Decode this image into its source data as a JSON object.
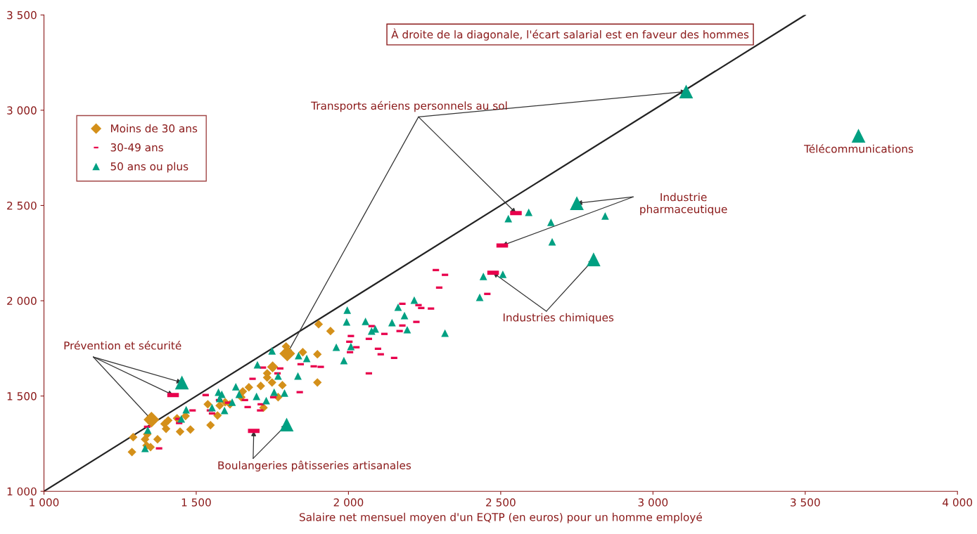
{
  "chart_data": {
    "type": "bubble",
    "xlabel": "Salaire net mensuel moyen d'un EQTP (en euros) pour un homme employé",
    "xlim": [
      1000,
      4000
    ],
    "ylim": [
      1000,
      3500
    ],
    "xticks": [
      {
        "value": 1000,
        "label": "1 000"
      },
      {
        "value": 1500,
        "label": "1 500"
      },
      {
        "value": 2000,
        "label": "2 000"
      },
      {
        "value": 2500,
        "label": "2 500"
      },
      {
        "value": 3000,
        "label": "3 000"
      },
      {
        "value": 3500,
        "label": "3 500"
      },
      {
        "value": 4000,
        "label": "4 000"
      }
    ],
    "yticks": [
      {
        "value": 1000,
        "label": "1 000"
      },
      {
        "value": 1500,
        "label": "1 500"
      },
      {
        "value": 2000,
        "label": "2 000"
      },
      {
        "value": 2500,
        "label": "2 500"
      },
      {
        "value": 3000,
        "label": "3 000"
      },
      {
        "value": 3500,
        "label": "3 500"
      }
    ],
    "grid": false,
    "legend": "top left",
    "series": [
      {
        "name": "Moins de 30 ans",
        "color": "#d4901a",
        "marker": "diamond",
        "x": [
          1799,
          1353,
          1751,
          1795,
          1850,
          1898,
          1898,
          1733,
          1733,
          1712,
          1749,
          1783,
          1673,
          1653,
          1648,
          1769,
          1721,
          1538,
          1577,
          1595,
          1611,
          1570,
          1547,
          1408,
          1396,
          1437,
          1465,
          1401,
          1447,
          1481,
          1339,
          1373,
          1332,
          1337,
          1350,
          1289,
          1293,
          1902,
          1941
        ],
        "values": [
          1723,
          1376,
          1653,
          1760,
          1730,
          1719,
          1571,
          1619,
          1597,
          1553,
          1571,
          1557,
          1546,
          1524,
          1494,
          1494,
          1439,
          1457,
          1450,
          1468,
          1457,
          1398,
          1347,
          1372,
          1354,
          1383,
          1395,
          1328,
          1313,
          1324,
          1299,
          1273,
          1273,
          1240,
          1232,
          1206,
          1284,
          1877,
          1841
        ],
        "sizes": [
          1,
          1,
          0.5,
          0.3,
          0.3,
          0.3,
          0.3,
          0.3,
          0.3,
          0.3,
          0.3,
          0.3,
          0.3,
          0.3,
          0.3,
          0.3,
          0.3,
          0.3,
          0.3,
          0.3,
          0.3,
          0.3,
          0.3,
          0.3,
          0.3,
          0.3,
          0.3,
          0.3,
          0.3,
          0.3,
          0.3,
          0.3,
          0.3,
          0.3,
          0.3,
          0.3,
          0.3,
          0.3,
          0.3
        ]
      },
      {
        "name": "30-49 ans",
        "color": "#e8004c",
        "marker": "square",
        "x": [
          2550,
          2505,
          2475,
          1424,
          1689,
          1719,
          1776,
          1843,
          1886,
          1909,
          1767,
          1685,
          1531,
          1488,
          1575,
          1605,
          1660,
          1669,
          1712,
          1710,
          1753,
          1840,
          1545,
          1552,
          1442,
          1444,
          1339,
          1378,
          2287,
          2317,
          2298,
          2177,
          2230,
          2239,
          2271,
          2223,
          2177,
          2076,
          2168,
          2118,
          2008,
          2067,
          2003,
          2026,
          2005,
          2097,
          2106,
          2150,
          2067,
          2456
        ],
        "values": [
          2460,
          2290,
          2147,
          1505,
          1317,
          1649,
          1645,
          1667,
          1656,
          1653,
          1619,
          1590,
          1505,
          1424,
          1479,
          1465,
          1479,
          1442,
          1457,
          1424,
          1494,
          1520,
          1424,
          1409,
          1380,
          1358,
          1339,
          1225,
          2161,
          2136,
          2069,
          1984,
          1977,
          1962,
          1959,
          1889,
          1870,
          1867,
          1841,
          1826,
          1815,
          1800,
          1785,
          1756,
          1730,
          1748,
          1719,
          1700,
          1619,
          2036
        ],
        "sizes": [
          0.39,
          0.39,
          0.39,
          0.39,
          0.39,
          0.12,
          0.12,
          0.12,
          0.12,
          0.12,
          0.12,
          0.12,
          0.12,
          0.12,
          0.12,
          0.12,
          0.12,
          0.12,
          0.12,
          0.12,
          0.12,
          0.12,
          0.12,
          0.12,
          0.12,
          0.12,
          0.12,
          0.12,
          0.12,
          0.12,
          0.12,
          0.12,
          0.12,
          0.12,
          0.12,
          0.12,
          0.12,
          0.12,
          0.12,
          0.12,
          0.12,
          0.12,
          0.12,
          0.12,
          0.12,
          0.12,
          0.12,
          0.12,
          0.12,
          0.12
        ]
      },
      {
        "name": "50 ans ou plus",
        "color": "#00a082",
        "marker": "triangle",
        "x": [
          3109,
          2750,
          2805,
          1453,
          1797,
          3675,
          1749,
          1701,
          1769,
          1834,
          1836,
          1863,
          1630,
          1573,
          1584,
          1577,
          1641,
          1618,
          1756,
          1790,
          1698,
          1730,
          1593,
          1552,
          1467,
          1451,
          1341,
          1332,
          1996,
          1994,
          2056,
          2088,
          2076,
          2143,
          2163,
          2216,
          2184,
          2193,
          2317,
          1960,
          2008,
          1985,
          2431,
          2525,
          2592,
          2665,
          2669,
          2843,
          2443,
          2507
        ],
        "values": [
          3098,
          2512,
          2217,
          1571,
          1350,
          2866,
          1737,
          1664,
          1605,
          1605,
          1712,
          1697,
          1549,
          1520,
          1509,
          1487,
          1509,
          1468,
          1520,
          1516,
          1498,
          1476,
          1424,
          1439,
          1428,
          1380,
          1321,
          1225,
          1951,
          1889,
          1892,
          1852,
          1841,
          1885,
          1966,
          2003,
          1922,
          1848,
          1830,
          1756,
          1760,
          1686,
          2018,
          2431,
          2464,
          2412,
          2309,
          2445,
          2128,
          2139
        ],
        "sizes": [
          0.77,
          0.77,
          0.77,
          0.77,
          0.77,
          0.77,
          0.23,
          0.23,
          0.23,
          0.23,
          0.23,
          0.23,
          0.23,
          0.23,
          0.23,
          0.23,
          0.23,
          0.23,
          0.23,
          0.23,
          0.23,
          0.23,
          0.23,
          0.23,
          0.23,
          0.23,
          0.23,
          0.23,
          0.23,
          0.23,
          0.23,
          0.23,
          0.23,
          0.23,
          0.23,
          0.23,
          0.23,
          0.23,
          0.23,
          0.23,
          0.23,
          0.23,
          0.23,
          0.23,
          0.23,
          0.23,
          0.23,
          0.23,
          0.23,
          0.23
        ]
      },
      {
        "type": "line",
        "color": "#222222",
        "marker": "none",
        "x": [
          1000,
          3500
        ],
        "values": [
          1000,
          3500
        ]
      }
    ],
    "annotations": [
      {
        "text": "Transports aériens personnels au sol",
        "x": 3109,
        "y": 3098
      },
      "Télécommunications",
      {
        "text": "Industrie\npharmaceutique",
        "x": 2750,
        "y": 2512
      },
      {
        "text": "Industries chimiques",
        "x": 2475,
        "y": 2147
      },
      {
        "text": "Prévention et sécurité",
        "x": 1453,
        "y": 1571
      },
      {
        "text": "Boulangeries pâtisseries artisanales",
        "x": 1689,
        "y": 1317
      },
      "À droite de la diagonale, l'écart salarial est en faveur des hommes"
    ]
  }
}
